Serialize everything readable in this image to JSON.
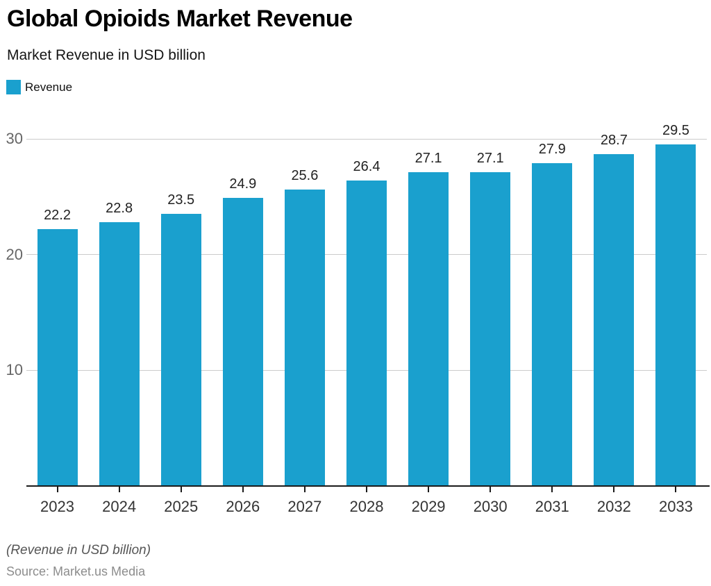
{
  "header": {
    "title": "Global Opioids Market Revenue",
    "subtitle": "Market Revenue in USD billion"
  },
  "legend": {
    "items": [
      {
        "label": "Revenue",
        "color": "#1AA0CE"
      }
    ]
  },
  "chart_data": {
    "type": "bar",
    "title": "Global Opioids Market Revenue",
    "subtitle": "Market Revenue in USD billion",
    "categories": [
      "2023",
      "2024",
      "2025",
      "2026",
      "2027",
      "2028",
      "2029",
      "2030",
      "2031",
      "2032",
      "2033"
    ],
    "series": [
      {
        "name": "Revenue",
        "values": [
          22.2,
          22.8,
          23.5,
          24.9,
          25.6,
          26.4,
          27.1,
          27.1,
          27.9,
          28.7,
          29.5
        ]
      }
    ],
    "value_labels": [
      "22.2",
      "22.8",
      "23.5",
      "24.9",
      "25.6",
      "26.4",
      "27.1",
      "27.1",
      "27.9",
      "28.7",
      "29.5"
    ],
    "xlabel": "",
    "ylabel": "",
    "ylim": [
      0,
      30
    ],
    "yticks": [
      10,
      20,
      30
    ],
    "grid": true,
    "legend_position": "top-left",
    "bar_color": "#1AA0CE",
    "grid_color": "#cbcbcb",
    "axis_color": "#1a1a1a"
  },
  "footer": {
    "note": "(Revenue in USD billion)",
    "source": "Source: Market.us Media"
  }
}
